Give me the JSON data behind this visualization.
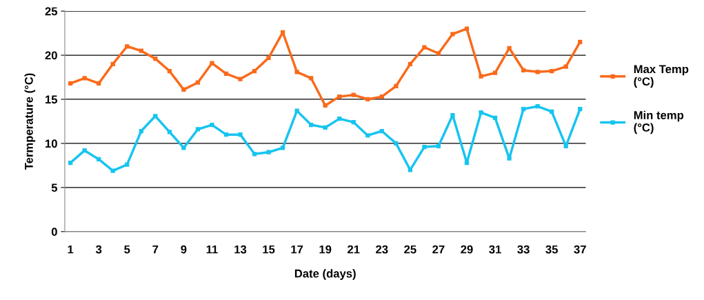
{
  "chart_data": {
    "type": "line",
    "xlabel": "Date (days)",
    "ylabel": "Termperature (°C)",
    "categories": [
      "1",
      null,
      "3",
      null,
      "5",
      null,
      "7",
      null,
      "9",
      null,
      "11",
      null,
      "13",
      null,
      "15",
      null,
      "17",
      null,
      "19",
      null,
      "21",
      null,
      "23",
      null,
      "25",
      null,
      "27",
      null,
      "29",
      null,
      "31",
      null,
      "33",
      null,
      "35",
      null,
      "37"
    ],
    "series": [
      {
        "name": "Max Temp\n(°C)",
        "color": "#f96a1b",
        "values": [
          16.8,
          17.4,
          16.8,
          19.0,
          21.0,
          20.5,
          19.6,
          18.2,
          16.1,
          16.9,
          19.1,
          17.9,
          17.3,
          18.2,
          19.7,
          22.6,
          18.1,
          17.4,
          14.3,
          15.3,
          15.5,
          15.0,
          15.3,
          16.5,
          19.0,
          20.9,
          20.2,
          22.4,
          23.0,
          17.6,
          18.0,
          20.8,
          18.3,
          18.1,
          18.2,
          18.7,
          21.5
        ]
      },
      {
        "name": "Min temp\n(°C)",
        "color": "#17c4f0",
        "values": [
          7.8,
          9.2,
          8.2,
          6.9,
          7.6,
          11.4,
          13.1,
          11.3,
          9.5,
          11.6,
          12.1,
          11.0,
          11.0,
          8.8,
          9.0,
          9.5,
          13.7,
          12.1,
          11.8,
          12.8,
          12.4,
          10.9,
          11.4,
          10.0,
          7.0,
          9.6,
          9.7,
          13.2,
          7.8,
          13.5,
          12.9,
          8.3,
          13.9,
          14.2,
          13.6,
          9.7,
          13.9
        ]
      }
    ],
    "ylim": [
      0,
      25
    ],
    "yticks": [
      0,
      5,
      10,
      15,
      20,
      25
    ],
    "grid": "y",
    "legend": "right",
    "marker": "square",
    "line_style": "solid"
  }
}
